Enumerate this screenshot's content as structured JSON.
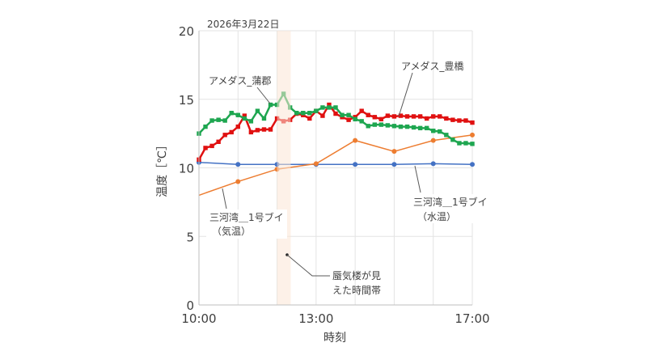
{
  "chart_data": {
    "type": "line",
    "date_label": "2026年3月22日",
    "xlabel": "時刻",
    "ylabel": "温度［℃］",
    "xlim_hours": [
      10,
      17
    ],
    "x_tick_labels": [
      {
        "h": 10,
        "label": "10:00"
      },
      {
        "h": 13,
        "label": "13:00"
      },
      {
        "h": 17,
        "label": "17:00"
      }
    ],
    "ylim": [
      0,
      20
    ],
    "y_ticks": [
      0,
      5,
      10,
      15,
      20
    ],
    "grid": true,
    "highlight_band": {
      "start_hour": 12.0,
      "end_hour": 12.35,
      "label_line1": "蜃気楼が見",
      "label_line2": "えた時間帯",
      "color": "#fbe5d6"
    },
    "series": [
      {
        "name": "アメダス_蒲郡",
        "color": "#1ea650",
        "marker": "square",
        "start_hour": 10,
        "step_minutes": 10,
        "values": [
          12.5,
          13.0,
          13.45,
          13.5,
          13.45,
          14.0,
          13.85,
          13.6,
          13.4,
          14.15,
          13.6,
          14.6,
          14.6,
          15.4,
          14.4,
          14.0,
          14.0,
          14.0,
          14.15,
          14.4,
          14.4,
          14.4,
          13.85,
          13.85,
          13.55,
          13.4,
          13.05,
          13.15,
          13.15,
          13.1,
          13.05,
          13.0,
          13.0,
          12.95,
          12.9,
          12.9,
          12.7,
          12.65,
          12.4,
          12.05,
          11.8,
          11.8,
          11.75
        ]
      },
      {
        "name": "アメダス_豊橋",
        "color": "#e01010",
        "marker": "square",
        "start_hour": 10,
        "step_minutes": 10,
        "values": [
          10.6,
          11.45,
          11.6,
          11.9,
          12.4,
          12.6,
          13.0,
          13.8,
          12.6,
          12.75,
          12.8,
          12.8,
          13.6,
          13.4,
          13.5,
          13.95,
          13.85,
          13.6,
          14.15,
          13.8,
          14.6,
          13.95,
          13.7,
          13.5,
          13.7,
          14.15,
          13.85,
          13.7,
          13.55,
          13.8,
          13.75,
          13.8,
          13.75,
          13.75,
          13.75,
          13.6,
          13.75,
          13.75,
          13.6,
          13.5,
          13.45,
          13.45,
          13.3
        ]
      },
      {
        "name": "三河湾＿1号ブイ（水温）",
        "label_line1": "三河湾＿1号ブイ",
        "label_line2": "（水温）",
        "color": "#4472c4",
        "marker": "circle",
        "start_hour": 10,
        "step_minutes": 60,
        "values": [
          10.4,
          10.25,
          10.25,
          10.25,
          10.25,
          10.25,
          10.3,
          10.25
        ]
      },
      {
        "name": "三河湾＿1号ブイ（気温）",
        "label_line1": "三河湾＿1号ブイ",
        "label_line2": "（気温）",
        "color": "#ed7d31",
        "marker": "circle",
        "start_hour": 10,
        "step_minutes": 60,
        "values": [
          8.0,
          9.0,
          9.9,
          10.3,
          12.0,
          11.2,
          12.0,
          12.4
        ]
      }
    ]
  }
}
